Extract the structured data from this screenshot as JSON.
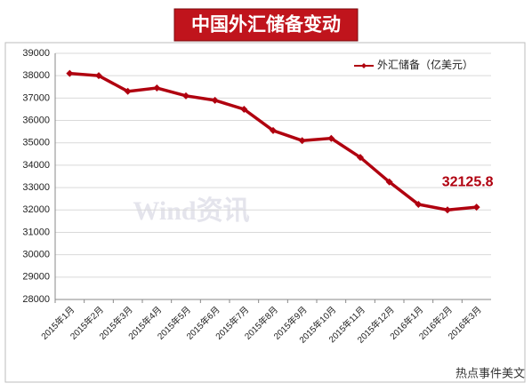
{
  "chart_data": {
    "type": "line",
    "title": "中国外汇储备变动",
    "categories": [
      "2015年1月",
      "2015年2月",
      "2015年3月",
      "2015年4月",
      "2015年5月",
      "2015年6月",
      "2015年7月",
      "2015年8月",
      "2015年9月",
      "2015年10月",
      "2015年11月",
      "2015年12月",
      "2016年1月",
      "2016年2月",
      "2016年3月"
    ],
    "series": [
      {
        "name": "外汇储备（亿美元）",
        "color": "#b0000f",
        "values": [
          38100,
          38000,
          37300,
          37450,
          37100,
          36900,
          36500,
          35550,
          35100,
          35200,
          34350,
          33250,
          32250,
          32000,
          32125.8
        ]
      }
    ],
    "ylim": [
      28000,
      39000
    ],
    "yticks": [
      28000,
      29000,
      30000,
      31000,
      32000,
      33000,
      34000,
      35000,
      36000,
      37000,
      38000,
      39000
    ],
    "grid": true,
    "legend": "top-right",
    "watermark": "Wind资讯",
    "footer": "热点事件美文"
  }
}
